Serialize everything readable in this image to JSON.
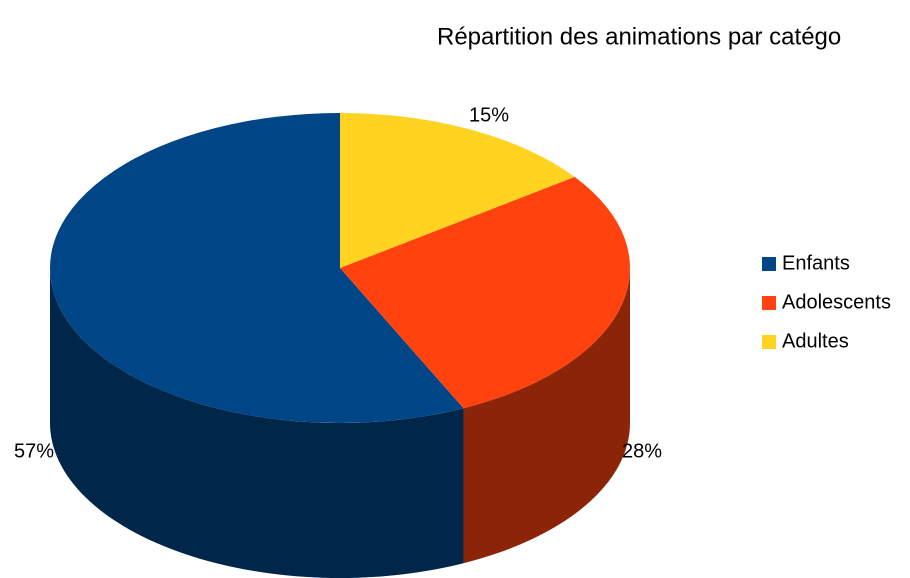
{
  "chart_data": {
    "type": "pie3d",
    "title": "Répartition des animations par catégo",
    "categories": [
      "Enfants",
      "Adolescents",
      "Adultes"
    ],
    "values": [
      57,
      28,
      15
    ],
    "value_labels": [
      "57%",
      "28%",
      "15%"
    ],
    "colors": [
      "#004586",
      "#ff420e",
      "#ffd320"
    ],
    "legend": "right"
  }
}
